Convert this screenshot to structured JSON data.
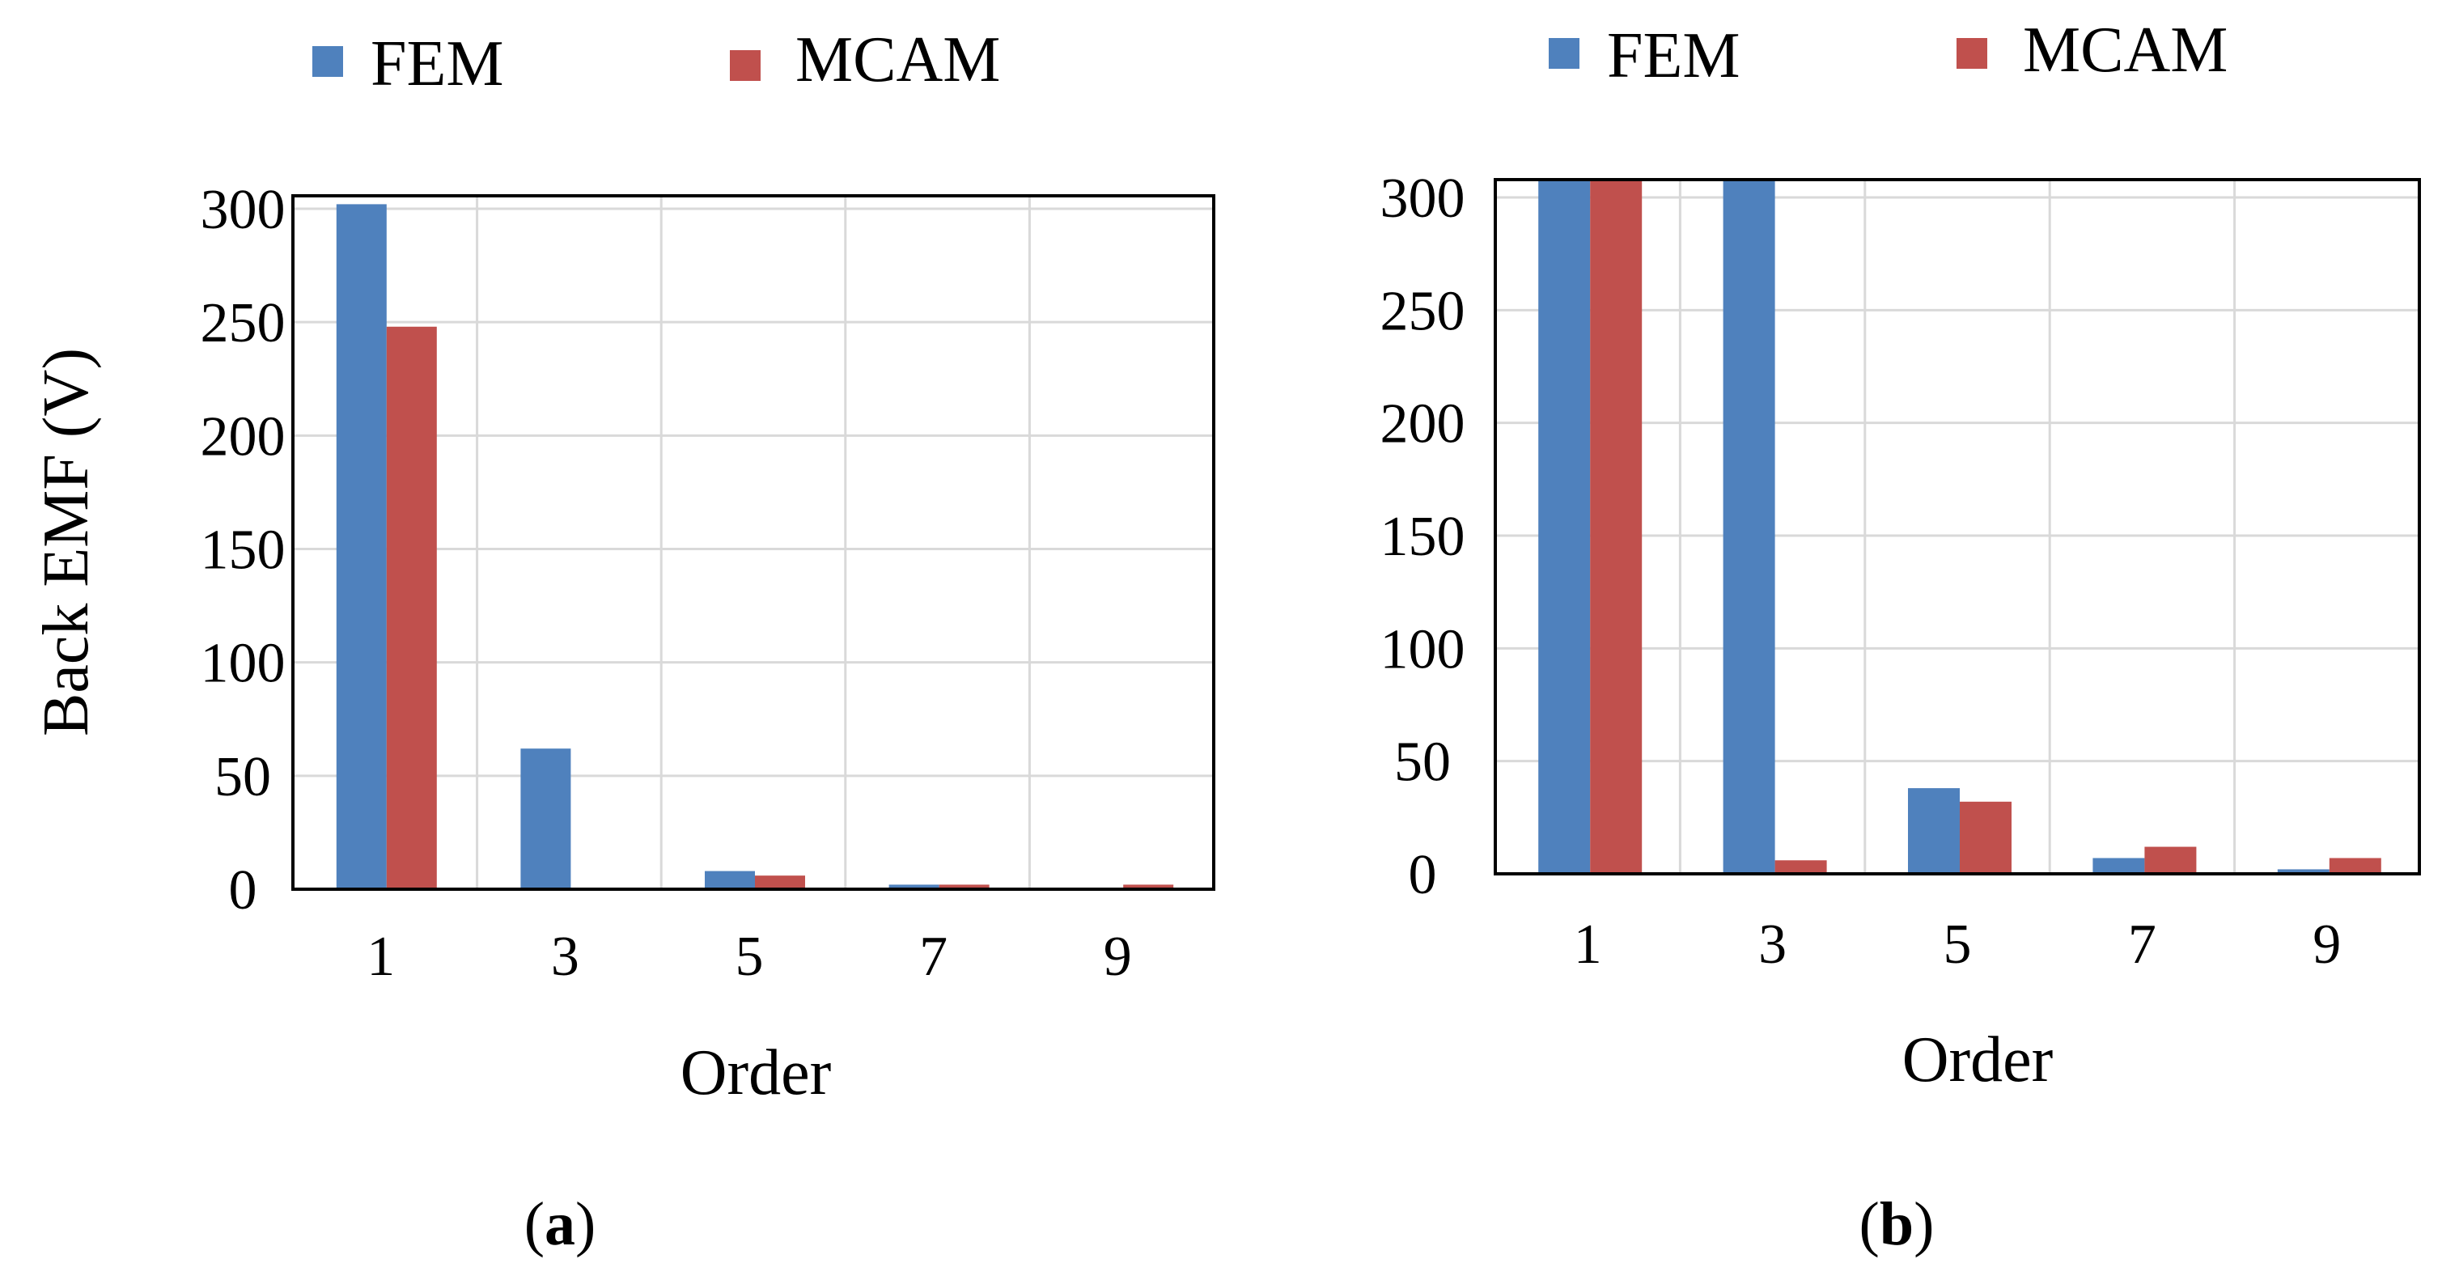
{
  "legend": {
    "fem": "FEM",
    "mcam": "MCAM"
  },
  "colors": {
    "fem": "#4F81BD",
    "mcam": "#C0504D",
    "grid": "#D9D9D9",
    "axis": "#000000"
  },
  "chart_data": [
    {
      "id": "a",
      "type": "bar",
      "caption": "a",
      "xlabel": "Order",
      "ylabel": "Back EMF (V)",
      "categories": [
        "1",
        "3",
        "5",
        "7",
        "9"
      ],
      "yticks": [
        "0",
        "50",
        "100",
        "150",
        "200",
        "250",
        "300"
      ],
      "ylim": [
        0,
        300
      ],
      "grid": true,
      "legend_position": "top",
      "series": [
        {
          "name": "FEM",
          "values": [
            302,
            62,
            8,
            2,
            0
          ]
        },
        {
          "name": "MCAM",
          "values": [
            248,
            0,
            6,
            2,
            2
          ]
        }
      ]
    },
    {
      "id": "b",
      "type": "bar",
      "caption": "b",
      "xlabel": "Order",
      "ylabel": "",
      "categories": [
        "1",
        "3",
        "5",
        "7",
        "9"
      ],
      "yticks": [
        "0",
        "50",
        "100",
        "150",
        "200",
        "250",
        "300"
      ],
      "ylim": [
        0,
        300
      ],
      "grid": true,
      "legend_position": "top",
      "series": [
        {
          "name": "FEM",
          "values": [
            310,
            310,
            38,
            7,
            2
          ]
        },
        {
          "name": "MCAM",
          "values": [
            310,
            6,
            32,
            12,
            7
          ]
        }
      ]
    }
  ]
}
